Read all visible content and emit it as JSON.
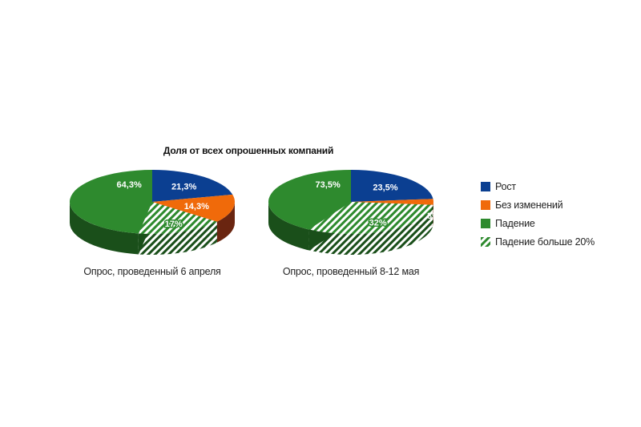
{
  "title": "Доля от всех опрошенных компаний",
  "colors": {
    "rost": "#0b3f91",
    "bez": "#f06a0a",
    "padenie": "#2e8a2e",
    "padenie20_stripe": "#2e8a2e",
    "padenie20_bg": "#ffffff"
  },
  "legend": [
    {
      "label": "Рост",
      "key": "rost"
    },
    {
      "label": "Без изменений",
      "key": "bez"
    },
    {
      "label": "Падение",
      "key": "padenie"
    },
    {
      "label": "Падение больше 20%",
      "key": "padenie20"
    }
  ],
  "chart_data": [
    {
      "type": "pie",
      "caption": "Опрос, проведенный 6 апреля",
      "slices": [
        {
          "series": "Рост",
          "value": 21.3,
          "label": "21,3%"
        },
        {
          "series": "Без изменений",
          "value": 14.3,
          "label": "14,3%"
        },
        {
          "series": "Падение",
          "value": 64.3,
          "label": "64,3%"
        },
        {
          "series": "Падение больше 20%",
          "value": 17,
          "label": "17%",
          "subset_of": "Падение"
        }
      ]
    },
    {
      "type": "pie",
      "caption": "Опрос, проведенный 8-12 мая",
      "slices": [
        {
          "series": "Рост",
          "value": 23.5,
          "label": "23,5%"
        },
        {
          "series": "Без изменений",
          "value": 3,
          "label": "3%"
        },
        {
          "series": "Падение",
          "value": 73.5,
          "label": "73,5%"
        },
        {
          "series": "Падение больше 20%",
          "value": 32,
          "label": "32%",
          "subset_of": "Падение"
        }
      ]
    }
  ]
}
